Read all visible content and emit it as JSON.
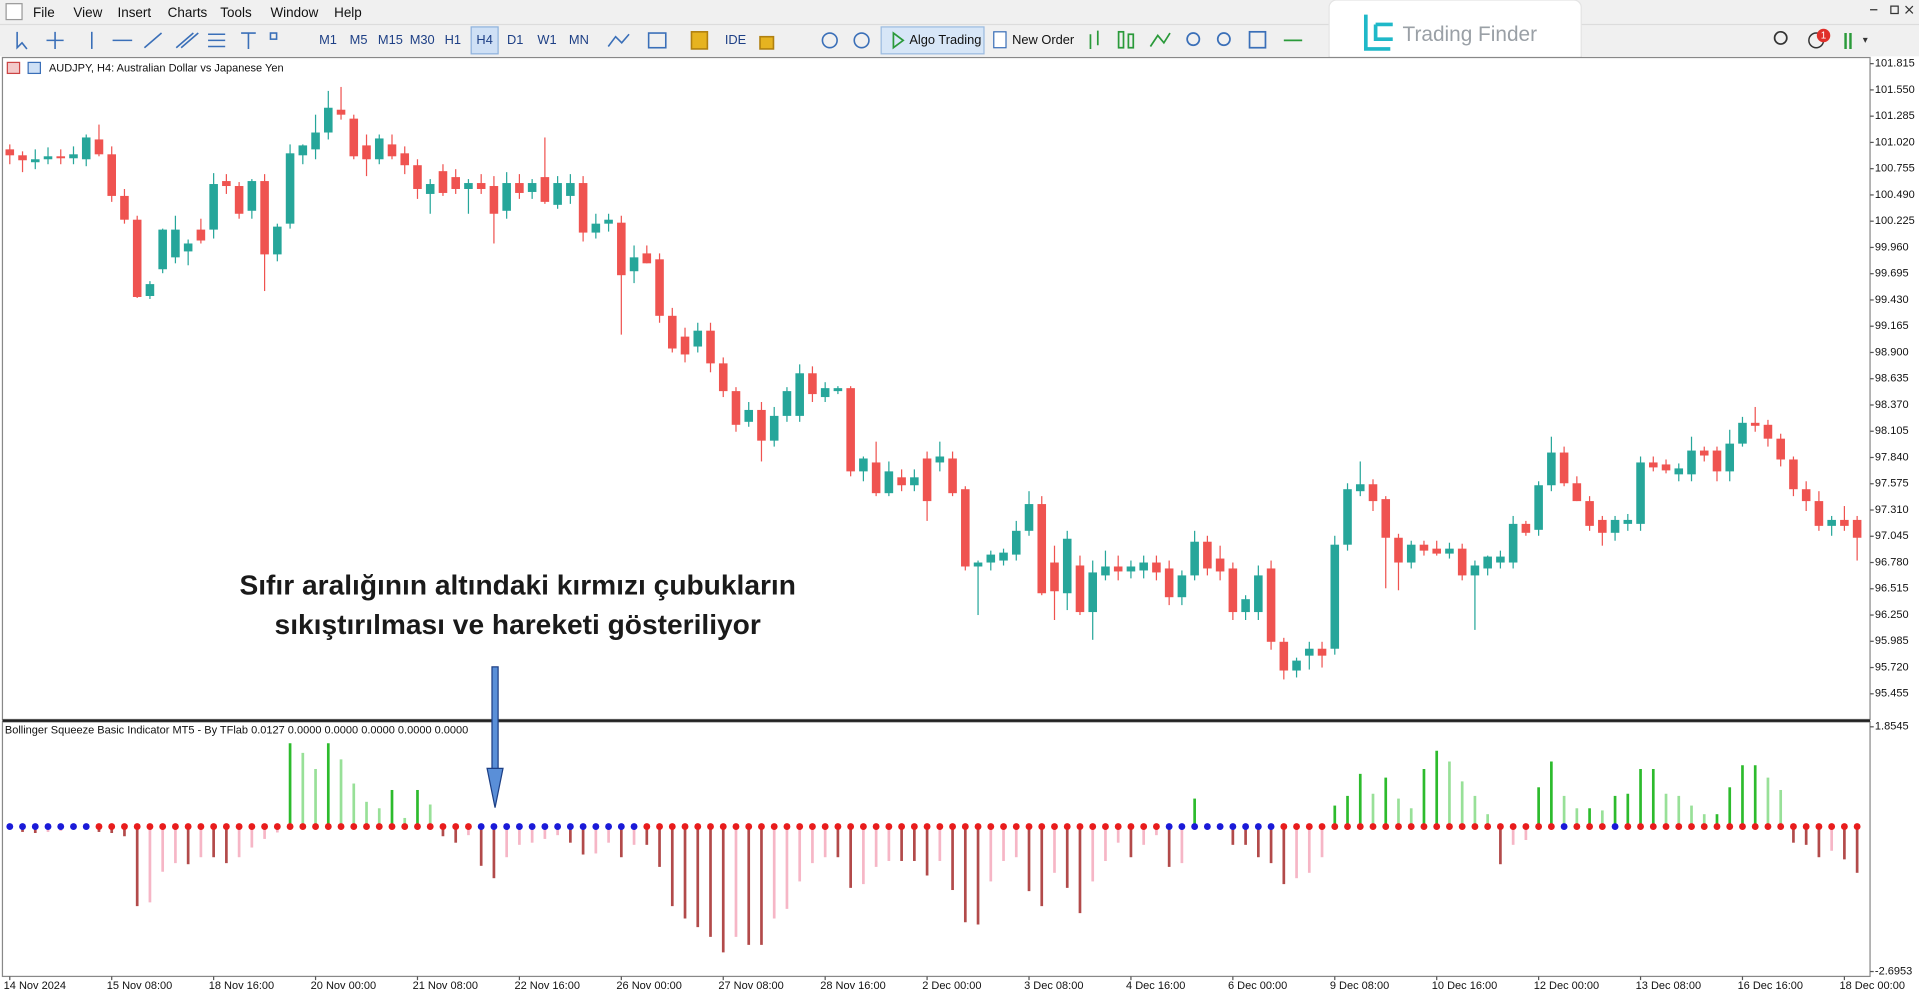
{
  "menu": [
    "File",
    "View",
    "Insert",
    "Charts",
    "Tools",
    "Window",
    "Help"
  ],
  "timeframes": [
    "M1",
    "M5",
    "M15",
    "M30",
    "H1",
    "H4",
    "D1",
    "W1",
    "MN"
  ],
  "toolbar": {
    "ide": "IDE",
    "algo_trading": "Algo Trading",
    "new_order": "New Order"
  },
  "brand": "Trading Finder",
  "notification_count": 1,
  "annotation": [
    "Sıfır aralığının altındaki kırmızı çubukların",
    "sıkıştırılması ve hareketi gösteriliyor"
  ],
  "chart_data": [
    {
      "type": "candlestick",
      "title": "AUDJPY, H4:  Australian Dollar vs Japanese Yen",
      "categories": [
        "14 Nov 2024",
        null,
        null,
        null,
        null,
        null,
        null,
        null,
        "15 Nov 08:00",
        null,
        null,
        null,
        null,
        null,
        null,
        null,
        "18 Nov 16:00",
        null,
        null,
        null,
        null,
        null,
        null,
        null,
        "20 Nov 00:00",
        null,
        null,
        null,
        null,
        null,
        null,
        null,
        "21 Nov 08:00",
        null,
        null,
        null,
        null,
        null,
        null,
        null,
        "22 Nov 16:00",
        null,
        null,
        null,
        null,
        null,
        null,
        null,
        "26 Nov 00:00",
        null,
        null,
        null,
        null,
        null,
        null,
        null,
        "27 Nov 08:00",
        null,
        null,
        null,
        null,
        null,
        null,
        null,
        "28 Nov 16:00",
        null,
        null,
        null,
        null,
        null,
        null,
        null,
        "2 Dec 00:00",
        null,
        null,
        null,
        null,
        null,
        null,
        null,
        "3 Dec 08:00",
        null,
        null,
        null,
        null,
        null,
        null,
        null,
        "4 Dec 16:00",
        null,
        null,
        null,
        null,
        null,
        null,
        null,
        "6 Dec 00:00",
        null,
        null,
        null,
        null,
        null,
        null,
        null,
        "9 Dec 08:00",
        null,
        null,
        null,
        null,
        null,
        null,
        null,
        "10 Dec 16:00",
        null,
        null,
        null,
        null,
        null,
        null,
        null,
        "12 Dec 00:00",
        null,
        null,
        null,
        null,
        null,
        null,
        null,
        "13 Dec 08:00",
        null,
        null,
        null,
        null,
        null,
        null,
        null,
        "16 Dec 16:00",
        null,
        null,
        null,
        null,
        null,
        null,
        null,
        "18 Dec 00:00",
        null
      ],
      "open": [
        100.95,
        100.89,
        100.82,
        100.85,
        100.88,
        100.86,
        100.85,
        101.05,
        100.9,
        100.48,
        100.24,
        99.47,
        99.74,
        99.86,
        99.92,
        100.14,
        100.14,
        100.63,
        100.58,
        100.33,
        100.63,
        99.89,
        100.2,
        100.89,
        100.95,
        101.12,
        101.35,
        101.26,
        100.99,
        100.85,
        101.0,
        100.91,
        100.79,
        100.5,
        100.73,
        100.67,
        100.55,
        100.61,
        100.58,
        100.33,
        100.61,
        100.52,
        100.67,
        100.39,
        100.48,
        100.61,
        100.11,
        100.2,
        100.21,
        99.72,
        99.9,
        99.84,
        99.27,
        99.06,
        98.96,
        99.12,
        98.79,
        98.51,
        98.2,
        98.32,
        98.01,
        98.26,
        98.26,
        98.69,
        98.45,
        98.51,
        98.54,
        97.7,
        97.79,
        97.48,
        97.64,
        97.56,
        97.83,
        97.79,
        97.83,
        97.52,
        96.74,
        96.78,
        96.8,
        96.86,
        97.1,
        97.37,
        96.78,
        96.47,
        96.75,
        96.28,
        96.65,
        96.74,
        96.69,
        96.7,
        96.78,
        96.72,
        96.43,
        96.65,
        96.99,
        96.82,
        96.72,
        96.28,
        96.28,
        96.72,
        95.98,
        95.69,
        95.84,
        95.91,
        95.91,
        96.96,
        97.5,
        97.57,
        97.42,
        97.03,
        96.78,
        96.96,
        96.92,
        96.87,
        96.92,
        96.65,
        96.72,
        96.78,
        96.78,
        97.17,
        97.11,
        97.56,
        97.89,
        97.58,
        97.4,
        97.21,
        97.08,
        97.17,
        97.17,
        97.79,
        97.77,
        97.67,
        97.67,
        97.91,
        97.91,
        97.7,
        97.98,
        98.19,
        98.17,
        98.03,
        97.82,
        97.52,
        97.4,
        97.15,
        97.21,
        97.21
      ],
      "high": [
        101.0,
        100.93,
        100.95,
        100.97,
        100.95,
        100.98,
        101.1,
        101.2,
        100.98,
        100.55,
        100.28,
        99.62,
        100.15,
        100.28,
        100.04,
        100.25,
        100.71,
        100.7,
        100.62,
        100.65,
        100.7,
        100.2,
        101.0,
        101.0,
        101.3,
        101.54,
        101.58,
        101.3,
        101.1,
        101.1,
        101.1,
        100.98,
        100.85,
        100.65,
        100.8,
        100.75,
        100.65,
        100.7,
        100.68,
        100.72,
        100.7,
        100.65,
        101.07,
        100.68,
        100.7,
        100.68,
        100.3,
        100.3,
        100.28,
        99.98,
        99.98,
        99.9,
        99.35,
        99.15,
        99.2,
        99.2,
        98.85,
        98.55,
        98.4,
        98.4,
        98.35,
        98.55,
        98.78,
        98.76,
        98.6,
        98.56,
        98.56,
        97.85,
        98.0,
        97.8,
        97.72,
        97.72,
        97.9,
        98.0,
        97.9,
        97.55,
        96.8,
        96.9,
        96.92,
        97.2,
        97.5,
        97.45,
        96.95,
        97.1,
        96.85,
        96.8,
        96.9,
        96.85,
        96.8,
        96.85,
        96.85,
        96.8,
        96.7,
        97.1,
        97.05,
        96.95,
        96.78,
        96.45,
        96.75,
        96.8,
        96.02,
        95.82,
        95.98,
        95.98,
        97.05,
        97.58,
        97.8,
        97.62,
        97.45,
        97.07,
        97.0,
        97.0,
        97.0,
        96.98,
        96.97,
        96.8,
        96.85,
        96.9,
        97.25,
        97.2,
        97.6,
        98.05,
        97.95,
        97.65,
        97.45,
        97.25,
        97.25,
        97.27,
        97.85,
        97.85,
        97.82,
        97.78,
        98.05,
        97.95,
        97.95,
        98.12,
        98.25,
        98.35,
        98.22,
        98.08,
        97.85,
        97.6,
        97.5,
        97.25,
        97.35,
        97.25
      ],
      "low": [
        100.8,
        100.72,
        100.75,
        100.8,
        100.8,
        100.8,
        100.78,
        100.88,
        100.42,
        100.2,
        99.45,
        99.44,
        99.7,
        99.8,
        99.78,
        100.0,
        100.05,
        100.5,
        100.25,
        100.25,
        99.52,
        99.82,
        100.15,
        100.8,
        100.85,
        101.05,
        101.25,
        100.85,
        100.68,
        100.8,
        100.85,
        100.7,
        100.45,
        100.3,
        100.48,
        100.5,
        100.3,
        100.5,
        100.0,
        100.25,
        100.45,
        100.45,
        100.4,
        100.35,
        100.4,
        100.02,
        100.05,
        100.12,
        99.08,
        99.6,
        99.8,
        99.2,
        98.9,
        98.8,
        98.9,
        98.7,
        98.45,
        98.1,
        98.15,
        97.8,
        97.95,
        98.2,
        98.2,
        98.4,
        98.4,
        98.48,
        97.65,
        97.6,
        97.45,
        97.45,
        97.5,
        97.5,
        97.2,
        97.7,
        97.45,
        96.7,
        96.25,
        96.7,
        96.75,
        96.8,
        97.05,
        96.45,
        96.2,
        96.3,
        96.25,
        96.0,
        96.6,
        96.6,
        96.62,
        96.62,
        96.6,
        96.35,
        96.35,
        96.6,
        96.65,
        96.6,
        96.2,
        96.2,
        96.2,
        95.9,
        95.6,
        95.62,
        95.7,
        95.72,
        95.85,
        96.9,
        97.45,
        97.3,
        96.52,
        96.5,
        96.72,
        96.85,
        96.85,
        96.82,
        96.6,
        96.1,
        96.65,
        96.72,
        96.72,
        97.05,
        97.05,
        97.5,
        97.55,
        97.4,
        97.1,
        96.95,
        97.0,
        97.1,
        97.1,
        97.7,
        97.68,
        97.6,
        97.6,
        97.8,
        97.6,
        97.6,
        97.95,
        98.1,
        97.95,
        97.75,
        97.45,
        97.3,
        97.1,
        97.05,
        97.1,
        96.8
      ],
      "close": [
        100.89,
        100.84,
        100.85,
        100.88,
        100.86,
        100.9,
        101.07,
        100.9,
        100.48,
        100.24,
        99.46,
        99.59,
        100.14,
        100.14,
        100.0,
        100.03,
        100.6,
        100.58,
        100.3,
        100.63,
        99.89,
        100.17,
        100.91,
        100.99,
        101.12,
        101.37,
        101.3,
        100.88,
        100.85,
        101.06,
        100.88,
        100.79,
        100.55,
        100.6,
        100.51,
        100.55,
        100.61,
        100.55,
        100.3,
        100.61,
        100.51,
        100.61,
        100.42,
        100.61,
        100.61,
        100.11,
        100.2,
        100.24,
        99.68,
        99.86,
        99.8,
        99.27,
        98.94,
        98.88,
        99.12,
        98.79,
        98.51,
        98.17,
        98.32,
        98.01,
        98.26,
        98.51,
        98.69,
        98.48,
        98.54,
        98.54,
        97.7,
        97.83,
        97.48,
        97.7,
        97.56,
        97.64,
        97.4,
        97.85,
        97.48,
        96.74,
        96.78,
        96.86,
        96.88,
        97.1,
        97.37,
        96.47,
        96.49,
        97.02,
        96.28,
        96.68,
        96.74,
        96.69,
        96.74,
        96.78,
        96.68,
        96.43,
        96.65,
        96.99,
        96.72,
        96.69,
        96.28,
        96.41,
        96.65,
        95.98,
        95.69,
        95.79,
        95.91,
        95.84,
        96.96,
        97.52,
        97.57,
        97.4,
        97.03,
        96.78,
        96.96,
        96.9,
        96.87,
        96.92,
        96.65,
        96.75,
        96.84,
        96.84,
        97.17,
        97.08,
        97.56,
        97.89,
        97.58,
        97.4,
        97.15,
        97.08,
        97.21,
        97.21,
        97.79,
        97.74,
        97.71,
        97.73,
        97.91,
        97.86,
        97.7,
        97.98,
        98.19,
        98.16,
        98.03,
        97.82,
        97.52,
        97.4,
        97.15,
        97.21,
        97.15,
        97.03
      ],
      "up_color": "#26a69a",
      "down_color": "#ef5350",
      "ylim": [
        95.196,
        101.877
      ],
      "yticks": [
        101.815,
        {
          "value": 101.55,
          "label": "101.550"
        },
        101.285,
        {
          "value": 101.02,
          "label": "101.020"
        },
        100.755,
        {
          "value": 100.49,
          "label": "100.490"
        },
        100.225,
        {
          "value": 99.96,
          "label": "99.960"
        },
        99.695,
        {
          "value": 99.43,
          "label": "99.430"
        },
        99.165,
        {
          "value": 98.9,
          "label": "98.900"
        },
        98.635,
        {
          "value": 98.37,
          "label": "98.370"
        },
        98.105,
        {
          "value": 97.84,
          "label": "97.840"
        },
        97.575,
        {
          "value": 97.31,
          "label": "97.310"
        },
        97.045,
        {
          "value": 96.78,
          "label": "96.780"
        },
        96.515,
        {
          "value": 96.25,
          "label": "96.250"
        },
        95.985,
        {
          "value": 95.72,
          "label": "95.720"
        },
        95.455
      ]
    },
    {
      "type": "histogram",
      "title": "Bollinger Squeeze Basic Indicator MT5 - By TFlab 0.0127 0.0000 0.0000 0.0000 0.0000 0.0000",
      "values": [
        -0.05,
        -0.1,
        -0.12,
        -0.1,
        -0.08,
        -0.05,
        -0.04,
        -0.1,
        -0.12,
        -0.18,
        -1.48,
        -1.41,
        -0.84,
        -0.68,
        -0.7,
        -0.57,
        -0.57,
        -0.68,
        -0.57,
        -0.39,
        -0.23,
        -0.11,
        1.55,
        1.37,
        1.07,
        1.55,
        1.25,
        0.8,
        0.46,
        0.34,
        0.68,
        0.16,
        0.68,
        0.41,
        -0.18,
        -0.3,
        -0.16,
        -0.73,
        -0.96,
        -0.57,
        -0.34,
        -0.3,
        -0.23,
        -0.16,
        -0.3,
        -0.52,
        -0.5,
        -0.3,
        -0.57,
        -0.34,
        -0.34,
        -0.75,
        -1.48,
        -1.71,
        -1.87,
        -2.05,
        -2.34,
        -2.05,
        -2.2,
        -2.2,
        -1.71,
        -1.53,
        -1.02,
        -0.68,
        -0.57,
        -0.57,
        -1.14,
        -1.07,
        -0.75,
        -0.64,
        -0.64,
        -0.64,
        -0.91,
        -0.64,
        -1.18,
        -1.78,
        -1.82,
        -1.02,
        -0.64,
        -0.57,
        -1.2,
        -1.48,
        -0.86,
        -1.14,
        -1.61,
        -1.02,
        -0.64,
        -0.3,
        -0.57,
        -0.34,
        -0.16,
        -0.75,
        -0.68,
        0.52,
        0.05,
        -0.02,
        -0.34,
        -0.34,
        -0.57,
        -0.68,
        -1.07,
        -0.96,
        -0.86,
        -0.57,
        0.39,
        0.57,
        0.98,
        0.61,
        0.91,
        0.52,
        0.34,
        1.07,
        1.41,
        1.21,
        0.84,
        0.57,
        0.23,
        -0.7,
        -0.34,
        -0.25,
        0.73,
        1.21,
        0.57,
        0.34,
        0.34,
        0.3,
        0.57,
        0.61,
        1.07,
        1.07,
        0.61,
        0.57,
        0.39,
        0.23,
        0.23,
        0.73,
        1.14,
        1.14,
        0.91,
        0.68,
        -0.3,
        -0.34,
        -0.57,
        -0.45,
        -0.61,
        -0.86
      ],
      "squeeze": [
        1,
        1,
        1,
        1,
        1,
        1,
        1,
        0,
        0,
        0,
        0,
        0,
        0,
        0,
        0,
        0,
        0,
        0,
        0,
        0,
        0,
        0,
        0,
        0,
        0,
        0,
        0,
        0,
        0,
        0,
        0,
        0,
        0,
        0,
        0,
        0,
        0,
        1,
        1,
        1,
        1,
        1,
        1,
        1,
        1,
        1,
        1,
        1,
        1,
        1,
        0,
        0,
        0,
        0,
        0,
        0,
        0,
        0,
        0,
        0,
        0,
        0,
        0,
        0,
        0,
        0,
        0,
        0,
        0,
        0,
        0,
        0,
        0,
        0,
        0,
        0,
        0,
        0,
        0,
        0,
        0,
        0,
        0,
        0,
        0,
        0,
        0,
        0,
        0,
        0,
        0,
        1,
        1,
        1,
        1,
        1,
        1,
        1,
        1,
        1,
        0,
        0,
        0,
        0,
        0,
        0,
        0,
        0,
        0,
        0,
        0,
        0,
        0,
        0,
        0,
        0,
        0,
        0,
        0,
        0,
        0,
        0,
        1,
        0,
        0,
        0,
        1,
        0,
        0,
        0,
        0,
        0,
        0,
        0,
        0,
        0,
        0,
        0,
        0,
        0,
        0,
        0,
        0,
        0,
        0,
        0
      ],
      "colors": {
        "up_strong": "#2dbb2d",
        "up_weak": "#98e098",
        "down_strong": "#b24a4a",
        "down_weak": "#f6b6c6",
        "squeeze": "#1a1ad8",
        "no_squeeze": "#e81c1c"
      },
      "ylim": [
        -2.7863,
        1.9455
      ],
      "yticks": [
        1.8545,
        -2.6953
      ]
    }
  ]
}
